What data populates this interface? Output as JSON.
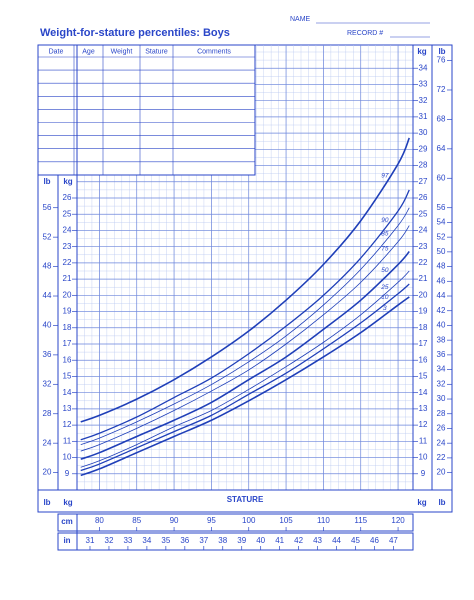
{
  "header": {
    "title": "Weight-for-stature percentiles: Boys",
    "name_label": "NAME",
    "record_label": "RECORD #"
  },
  "table": {
    "headers": [
      "Date",
      "Age",
      "Weight",
      "Stature",
      "Comments"
    ]
  },
  "chart_data": {
    "type": "line",
    "x_label": "STATURE",
    "x_unit": "cm",
    "x2_unit": "in",
    "y_unit": "kg",
    "y2_unit": "lb",
    "x": [
      77.5,
      80,
      85,
      90,
      95,
      100,
      105,
      110,
      115,
      120,
      121.5
    ],
    "xlim": [
      77,
      122
    ],
    "xticks": [
      80,
      85,
      90,
      95,
      100,
      105,
      110,
      115,
      120
    ],
    "x2lim": [
      30.315,
      48.0315
    ],
    "x2ticks": [
      31,
      32,
      33,
      34,
      35,
      36,
      37,
      38,
      39,
      40,
      41,
      42,
      43,
      44,
      45,
      46,
      47
    ],
    "ylim": [
      8,
      35
    ],
    "yticks": [
      9,
      10,
      11,
      12,
      13,
      14,
      15,
      16,
      17,
      18,
      19,
      20,
      21,
      22,
      23,
      24,
      25,
      26,
      27,
      28,
      29,
      30,
      31,
      32,
      33,
      34
    ],
    "y2lim": [
      17.637,
      77.162
    ],
    "y2ticks": [
      20,
      22,
      24,
      26,
      28,
      30,
      32,
      34,
      36,
      38,
      40,
      42,
      44,
      46,
      48,
      50,
      52,
      54,
      56,
      60,
      64,
      68,
      72,
      76
    ],
    "grid": true,
    "series": [
      {
        "name": "97",
        "color": "#1f3fb8",
        "width": 1.6,
        "values": [
          12.2,
          12.6,
          13.6,
          14.8,
          16.2,
          17.8,
          19.7,
          21.9,
          24.6,
          28.1,
          29.7
        ]
      },
      {
        "name": "90",
        "color": "#1f3fb8",
        "width": 1.3,
        "values": [
          11.1,
          11.5,
          12.5,
          13.7,
          14.9,
          16.4,
          18.1,
          20.0,
          22.3,
          25.2,
          26.5
        ]
      },
      {
        "name": "85",
        "color": "#1f3fb8",
        "width": 0.8,
        "values": [
          10.8,
          11.2,
          12.2,
          13.3,
          14.5,
          15.9,
          17.5,
          19.4,
          21.6,
          24.3,
          25.4
        ]
      },
      {
        "name": "75",
        "color": "#1f3fb8",
        "width": 0.8,
        "values": [
          10.4,
          10.8,
          11.8,
          12.9,
          14.1,
          15.4,
          17.0,
          18.8,
          20.8,
          23.3,
          24.3
        ]
      },
      {
        "name": "50",
        "color": "#1f3fb8",
        "width": 1.6,
        "values": [
          9.9,
          10.3,
          11.3,
          12.3,
          13.4,
          14.8,
          16.2,
          17.9,
          19.7,
          21.9,
          22.7
        ]
      },
      {
        "name": "25",
        "color": "#1f3fb8",
        "width": 0.8,
        "values": [
          9.4,
          9.8,
          10.8,
          11.9,
          12.9,
          14.2,
          15.6,
          17.1,
          18.8,
          20.8,
          21.5
        ]
      },
      {
        "name": "10",
        "color": "#1f3fb8",
        "width": 1.3,
        "values": [
          9.2,
          9.6,
          10.6,
          11.6,
          12.6,
          13.9,
          15.2,
          16.7,
          18.3,
          20.1,
          20.7
        ]
      },
      {
        "name": "3",
        "color": "#1f3fb8",
        "width": 1.6,
        "values": [
          8.9,
          9.3,
          10.3,
          11.3,
          12.3,
          13.5,
          14.8,
          16.2,
          17.7,
          19.4,
          19.9
        ]
      }
    ]
  }
}
